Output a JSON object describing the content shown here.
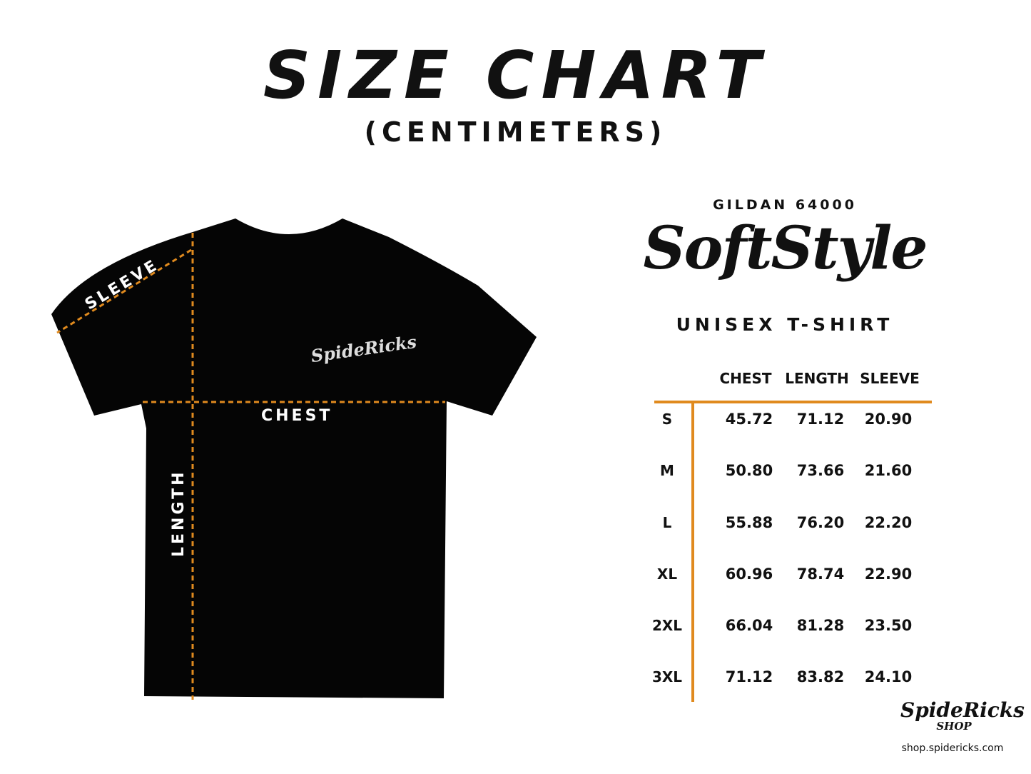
{
  "header": {
    "title": "SIZE CHART",
    "subtitle": "(CENTIMETERS)"
  },
  "product": {
    "brand_line": "GILDAN 64000",
    "style_name": "SoftStyle",
    "type": "UNISEX T-SHIRT"
  },
  "diagram": {
    "labels": {
      "sleeve": "SLEEVE",
      "chest": "CHEST",
      "length": "LENGTH"
    },
    "shirt_logo": "SpideRicks",
    "shirt_color": "#000000",
    "measure_line_color": "#E08A1E"
  },
  "table": {
    "columns": [
      "CHEST",
      "LENGTH",
      "SLEEVE"
    ],
    "rows": [
      {
        "size": "S",
        "chest": "45.72",
        "length": "71.12",
        "sleeve": "20.90"
      },
      {
        "size": "M",
        "chest": "50.80",
        "length": "73.66",
        "sleeve": "21.60"
      },
      {
        "size": "L",
        "chest": "55.88",
        "length": "76.20",
        "sleeve": "22.20"
      },
      {
        "size": "XL",
        "chest": "60.96",
        "length": "78.74",
        "sleeve": "22.90"
      },
      {
        "size": "2XL",
        "chest": "66.04",
        "length": "81.28",
        "sleeve": "23.50"
      },
      {
        "size": "3XL",
        "chest": "71.12",
        "length": "83.82",
        "sleeve": "24.10"
      }
    ],
    "rule_color": "#E08A1E"
  },
  "footer": {
    "logo": "SpideRicks SHOP",
    "url": "shop.spidericks.com"
  }
}
